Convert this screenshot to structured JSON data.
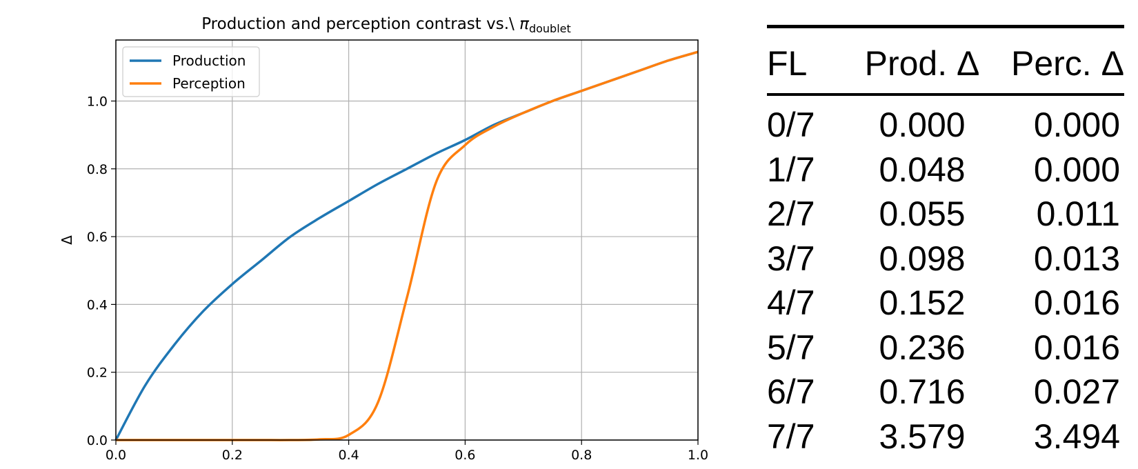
{
  "chart_data": {
    "type": "line",
    "title_main": "Production and perception contrast vs.\\ ",
    "title_symbol": "π",
    "title_subscript": "doublet",
    "xlabel": "",
    "ylabel": "Δ",
    "xlim": [
      0.0,
      1.0
    ],
    "ylim": [
      0.0,
      1.18
    ],
    "xticks": [
      "0.0",
      "0.2",
      "0.4",
      "0.6",
      "0.8",
      "1.0"
    ],
    "xtick_values": [
      0.0,
      0.2,
      0.4,
      0.6,
      0.8,
      1.0
    ],
    "yticks": [
      "0.0",
      "0.2",
      "0.4",
      "0.6",
      "0.8",
      "1.0"
    ],
    "ytick_values": [
      0.0,
      0.2,
      0.4,
      0.6,
      0.8,
      1.0
    ],
    "grid": true,
    "legend_position": "upper-left",
    "x": [
      0.0,
      0.05,
      0.1,
      0.15,
      0.2,
      0.25,
      0.3,
      0.35,
      0.4,
      0.45,
      0.5,
      0.55,
      0.6,
      0.65,
      0.7,
      0.75,
      0.8,
      0.85,
      0.9,
      0.95,
      1.0
    ],
    "series": [
      {
        "name": "Production",
        "color": "#1f77b4",
        "values": [
          0.0,
          0.16,
          0.28,
          0.38,
          0.46,
          0.53,
          0.6,
          0.655,
          0.705,
          0.755,
          0.8,
          0.845,
          0.885,
          0.93,
          0.965,
          1.0,
          1.03,
          1.06,
          1.09,
          1.12,
          1.145
        ]
      },
      {
        "name": "Perception",
        "color": "#ff7f0e",
        "values": [
          0.0,
          0.0,
          0.0,
          0.0,
          0.0,
          0.0,
          0.0,
          0.002,
          0.015,
          0.11,
          0.42,
          0.76,
          0.87,
          0.925,
          0.965,
          1.0,
          1.03,
          1.06,
          1.09,
          1.12,
          1.145
        ]
      }
    ]
  },
  "table": {
    "headers": {
      "fl": "FL",
      "prod": "Prod. Δ",
      "perc": "Perc. Δ"
    },
    "rows": [
      {
        "fl": "0/7",
        "prod": "0.000",
        "perc": "0.000"
      },
      {
        "fl": "1/7",
        "prod": "0.048",
        "perc": "0.000"
      },
      {
        "fl": "2/7",
        "prod": "0.055",
        "perc": "0.011"
      },
      {
        "fl": "3/7",
        "prod": "0.098",
        "perc": "0.013"
      },
      {
        "fl": "4/7",
        "prod": "0.152",
        "perc": "0.016"
      },
      {
        "fl": "5/7",
        "prod": "0.236",
        "perc": "0.016"
      },
      {
        "fl": "6/7",
        "prod": "0.716",
        "perc": "0.027"
      },
      {
        "fl": "7/7",
        "prod": "3.579",
        "perc": "3.494"
      }
    ]
  }
}
